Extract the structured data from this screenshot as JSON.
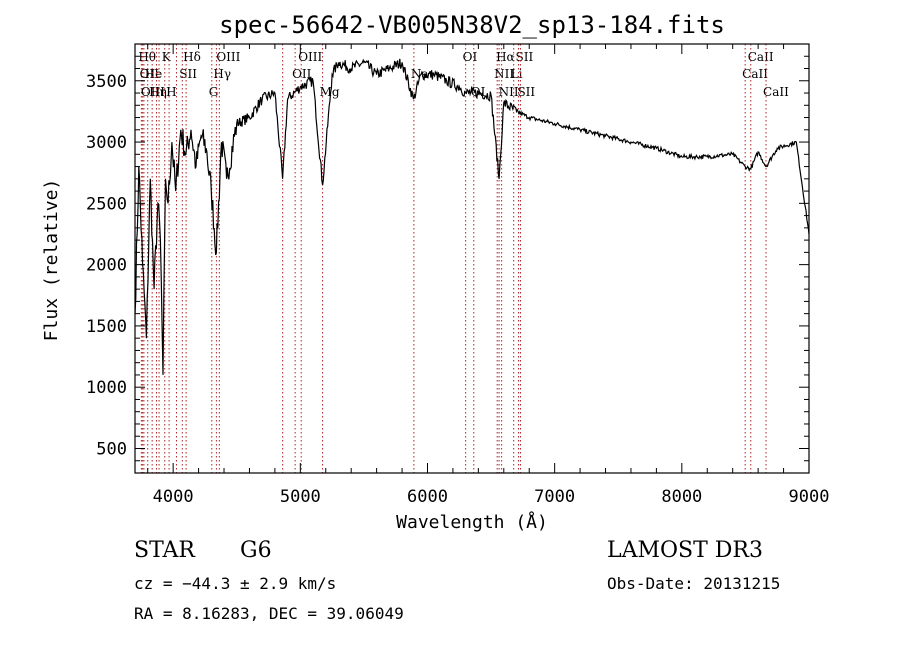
{
  "chart_data": {
    "type": "line",
    "title": "spec-56642-VB005N38V2_sp13-184.fits",
    "xlabel": "Wavelength (Å)",
    "ylabel": "Flux (relative)",
    "xlim": [
      3700,
      9000
    ],
    "ylim": [
      300,
      3800
    ],
    "x_ticks": [
      4000,
      5000,
      6000,
      7000,
      8000,
      9000
    ],
    "x_tick_labels": [
      "4000",
      "5000",
      "6000",
      "7000",
      "8000",
      "9000"
    ],
    "y_ticks": [
      500,
      1000,
      1500,
      2000,
      2500,
      3000,
      3500
    ],
    "y_tick_labels": [
      "500",
      "1000",
      "1500",
      "2000",
      "2500",
      "3000",
      "3500"
    ],
    "grid": false,
    "series": [
      {
        "name": "flux",
        "x": [
          3700,
          3730,
          3760,
          3790,
          3820,
          3850,
          3880,
          3900,
          3920,
          3940,
          3960,
          3990,
          4020,
          4060,
          4100,
          4140,
          4180,
          4220,
          4260,
          4300,
          4340,
          4380,
          4420,
          4500,
          4600,
          4700,
          4800,
          4861,
          4900,
          5000,
          5100,
          5175,
          5250,
          5300,
          5400,
          5500,
          5600,
          5700,
          5800,
          5890,
          5950,
          6050,
          6150,
          6250,
          6300,
          6400,
          6500,
          6563,
          6600,
          6700,
          6800,
          7000,
          7200,
          7400,
          7600,
          7800,
          8000,
          8200,
          8400,
          8498,
          8542,
          8600,
          8662,
          8750,
          8900,
          9000
        ],
        "values": [
          1600,
          2800,
          2000,
          1400,
          2700,
          1800,
          2500,
          2200,
          1100,
          2700,
          2500,
          3000,
          2600,
          3100,
          2900,
          3100,
          2800,
          3050,
          2950,
          2600,
          2100,
          3000,
          2700,
          3150,
          3200,
          3350,
          3400,
          2700,
          3350,
          3450,
          3500,
          2650,
          3550,
          3650,
          3600,
          3650,
          3550,
          3600,
          3650,
          3350,
          3550,
          3550,
          3500,
          3450,
          3400,
          3400,
          3380,
          2700,
          3320,
          3250,
          3200,
          3150,
          3100,
          3050,
          3000,
          2950,
          2880,
          2880,
          2900,
          2800,
          2780,
          2920,
          2800,
          2950,
          3000,
          2250
        ]
      }
    ],
    "lines": [
      {
        "x": 3750,
        "label": "Hθ",
        "row": 1
      },
      {
        "x": 3760,
        "label": "OII",
        "row": 2
      },
      {
        "x": 3770,
        "label": "OIII",
        "row": 3
      },
      {
        "x": 3800,
        "label": "He",
        "row": 2
      },
      {
        "x": 3835,
        "label": "Hη",
        "row": 3
      },
      {
        "x": 3869,
        "label": "",
        "row": 0
      },
      {
        "x": 3889,
        "label": "",
        "row": 0
      },
      {
        "x": 3934,
        "label": "K",
        "row": 1
      },
      {
        "x": 3968,
        "label": "H",
        "row": 3
      },
      {
        "x": 4026,
        "label": "",
        "row": 0
      },
      {
        "x": 4072,
        "label": "SII",
        "row": 2
      },
      {
        "x": 4102,
        "label": "Hδ",
        "row": 1
      },
      {
        "x": 4304,
        "label": "G",
        "row": 3
      },
      {
        "x": 4340,
        "label": "Hγ",
        "row": 2
      },
      {
        "x": 4363,
        "label": "OIII",
        "row": 1
      },
      {
        "x": 4861,
        "label": "",
        "row": 0
      },
      {
        "x": 4959,
        "label": "OII",
        "row": 2
      },
      {
        "x": 5007,
        "label": "OIII",
        "row": 1
      },
      {
        "x": 5175,
        "label": "Mg",
        "row": 3
      },
      {
        "x": 5893,
        "label": "Na",
        "row": 2
      },
      {
        "x": 6300,
        "label": "OI",
        "row": 1
      },
      {
        "x": 6364,
        "label": "OI",
        "row": 3
      },
      {
        "x": 6548,
        "label": "NII",
        "row": 2
      },
      {
        "x": 6563,
        "label": "Hα",
        "row": 1
      },
      {
        "x": 6583,
        "label": "NII",
        "row": 3
      },
      {
        "x": 6678,
        "label": "Li",
        "row": 2
      },
      {
        "x": 6716,
        "label": "SII",
        "row": 1
      },
      {
        "x": 6731,
        "label": "SII",
        "row": 3
      },
      {
        "x": 8498,
        "label": "CaII",
        "row": 2
      },
      {
        "x": 8542,
        "label": "CaII",
        "row": 1
      },
      {
        "x": 8662,
        "label": "CaII",
        "row": 3
      }
    ]
  },
  "info": {
    "object_class": "STAR",
    "subclass": "G6",
    "survey": "LAMOST DR3",
    "cz": "cz = −44.3 ± 2.9 km/s",
    "obs_date": "Obs-Date: 20131215",
    "radec": "RA =   8.16283, DEC =  39.06049"
  },
  "colors": {
    "spectrum": "#000000",
    "line_marker": "#b22222",
    "axis": "#000000"
  }
}
